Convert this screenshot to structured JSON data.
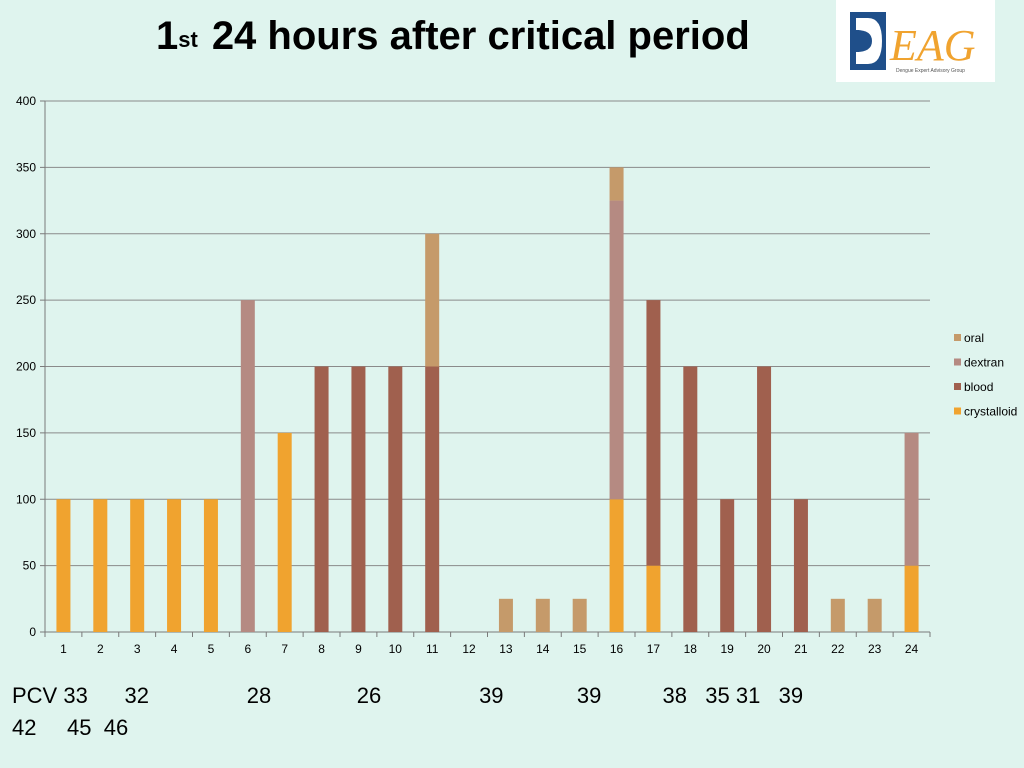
{
  "title": {
    "main": "1",
    "superscript": "st",
    "rest": "24 hours after critical period"
  },
  "logo": {
    "text": "EAG",
    "caption": "Dengue Expert Advisory Group"
  },
  "pcv": {
    "line1": "PCV 33      32                28              26                39            39          38   35 31   39",
    "line2": "42     45  46"
  },
  "colors": {
    "oral": "#c59a6a",
    "dextran": "#b58a82",
    "blood": "#a0604e",
    "crystalloid": "#f0a32f",
    "grid": "#8a8a8a",
    "background": "#dff4ee"
  },
  "chart_data": {
    "type": "bar",
    "stacked": true,
    "categories": [
      "1",
      "2",
      "3",
      "4",
      "5",
      "6",
      "7",
      "8",
      "9",
      "10",
      "11",
      "12",
      "13",
      "14",
      "15",
      "16",
      "17",
      "18",
      "19",
      "20",
      "21",
      "22",
      "23",
      "24"
    ],
    "ylim": [
      0,
      400
    ],
    "yticks": [
      0,
      50,
      100,
      150,
      200,
      250,
      300,
      350,
      400
    ],
    "grid": true,
    "legend_position": "right",
    "series": [
      {
        "name": "crystalloid",
        "color_key": "crystalloid",
        "values": [
          100,
          100,
          100,
          100,
          100,
          0,
          150,
          0,
          0,
          0,
          0,
          0,
          0,
          0,
          0,
          100,
          50,
          0,
          0,
          0,
          0,
          0,
          0,
          50
        ]
      },
      {
        "name": "blood",
        "color_key": "blood",
        "values": [
          0,
          0,
          0,
          0,
          0,
          0,
          0,
          200,
          200,
          200,
          200,
          0,
          0,
          0,
          0,
          0,
          200,
          200,
          100,
          200,
          100,
          0,
          0,
          0
        ]
      },
      {
        "name": "dextran",
        "color_key": "dextran",
        "values": [
          0,
          0,
          0,
          0,
          0,
          250,
          0,
          0,
          0,
          0,
          0,
          0,
          0,
          0,
          0,
          225,
          0,
          0,
          0,
          0,
          0,
          0,
          0,
          100
        ]
      },
      {
        "name": "oral",
        "color_key": "oral",
        "values": [
          0,
          0,
          0,
          0,
          0,
          0,
          0,
          0,
          0,
          0,
          100,
          0,
          25,
          25,
          25,
          25,
          0,
          0,
          0,
          0,
          0,
          25,
          25,
          0
        ]
      }
    ],
    "legend_order": [
      "oral",
      "dextran",
      "blood",
      "crystalloid"
    ]
  }
}
